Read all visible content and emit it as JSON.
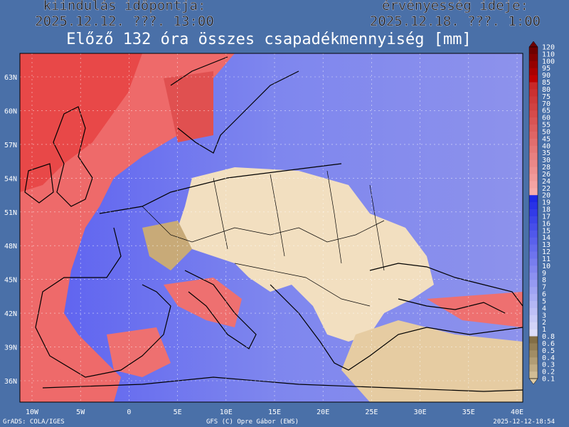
{
  "header": {
    "start_label": "kiindulás időpontja:",
    "start_time": "2025.12.12. ???. 13:00",
    "valid_label": "érvényesség ideje:",
    "valid_time": "2025.12.18. ???. 1:00",
    "title": "Előző 132 óra összes csapadékmennyiség [mm]"
  },
  "map": {
    "latitudes": [
      "63N",
      "60N",
      "57N",
      "54N",
      "51N",
      "48N",
      "45N",
      "42N",
      "39N",
      "36N"
    ],
    "longitudes": [
      "10W",
      "5W",
      "0",
      "5E",
      "10E",
      "15E",
      "20E",
      "25E",
      "30E",
      "35E",
      "40E"
    ]
  },
  "colorbar": {
    "levels": [
      "120",
      "110",
      "100",
      "95",
      "90",
      "85",
      "80",
      "75",
      "70",
      "65",
      "60",
      "55",
      "50",
      "45",
      "40",
      "35",
      "30",
      "28",
      "26",
      "24",
      "22",
      "20",
      "19",
      "18",
      "17",
      "16",
      "15",
      "14",
      "13",
      "12",
      "11",
      "10",
      "9",
      "8",
      "7",
      "6",
      "5",
      "4",
      "3",
      "2",
      "1",
      "0.8",
      "0.6",
      "0.5",
      "0.4",
      "0.3",
      "0.2",
      "0.1"
    ]
  },
  "footer": {
    "left": "GrADS: COLA/IGES",
    "center": "GFS (C) Opre Gábor (EWS)",
    "right": "2025-12-12-18:54"
  }
}
